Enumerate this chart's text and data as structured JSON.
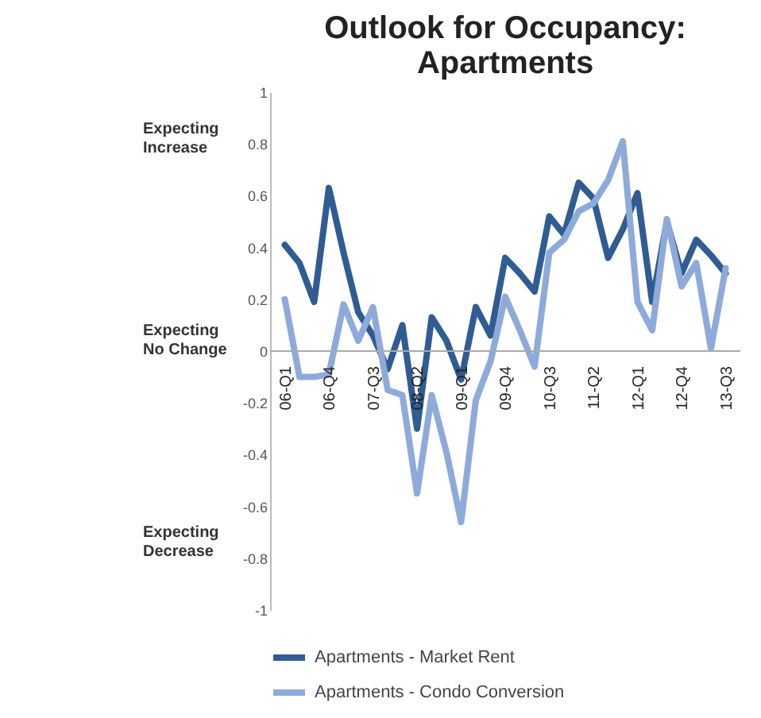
{
  "chart_data": {
    "type": "line",
    "title": "Outlook for Occupancy: Apartments",
    "categories": [
      "06-Q1",
      null,
      null,
      "06-Q4",
      null,
      null,
      "07-Q3",
      null,
      null,
      "08-Q2",
      null,
      null,
      "09-Q1",
      null,
      null,
      "09-Q4",
      null,
      null,
      "10-Q3",
      null,
      null,
      "11-Q2",
      null,
      null,
      "12-Q1",
      null,
      null,
      "12-Q4",
      null,
      null,
      "13-Q3"
    ],
    "series": [
      {
        "name": "Apartments - Market Rent",
        "color": "#2f5c93",
        "values": [
          0.41,
          0.34,
          0.19,
          0.63,
          0.38,
          0.15,
          0.06,
          -0.07,
          0.1,
          -0.3,
          0.13,
          0.04,
          -0.11,
          0.17,
          0.06,
          0.36,
          0.3,
          0.23,
          0.52,
          0.45,
          0.65,
          0.59,
          0.36,
          0.47,
          0.61,
          0.19,
          0.5,
          0.3,
          0.43,
          0.37,
          0.3
        ]
      },
      {
        "name": "Apartments - Condo Conversion",
        "color": "#8eaadb",
        "values": [
          0.2,
          -0.1,
          -0.1,
          -0.09,
          0.18,
          0.04,
          0.17,
          -0.15,
          -0.17,
          -0.55,
          -0.17,
          -0.39,
          -0.66,
          -0.19,
          -0.04,
          0.21,
          0.08,
          -0.06,
          0.38,
          0.43,
          0.54,
          0.57,
          0.66,
          0.81,
          0.19,
          0.08,
          0.51,
          0.25,
          0.34,
          0.01,
          0.32
        ]
      }
    ],
    "ylim": [
      -1,
      1
    ],
    "yticks": [
      -1,
      -0.8,
      -0.6,
      -0.4,
      -0.2,
      0,
      0.2,
      0.4,
      0.6,
      0.8,
      1
    ],
    "annotations": [
      "Expecting Increase",
      "Expecting No Change",
      "Expecting Decrease"
    ],
    "legend": "bottom",
    "grid": false,
    "marker": "none",
    "line_style": "solid"
  }
}
